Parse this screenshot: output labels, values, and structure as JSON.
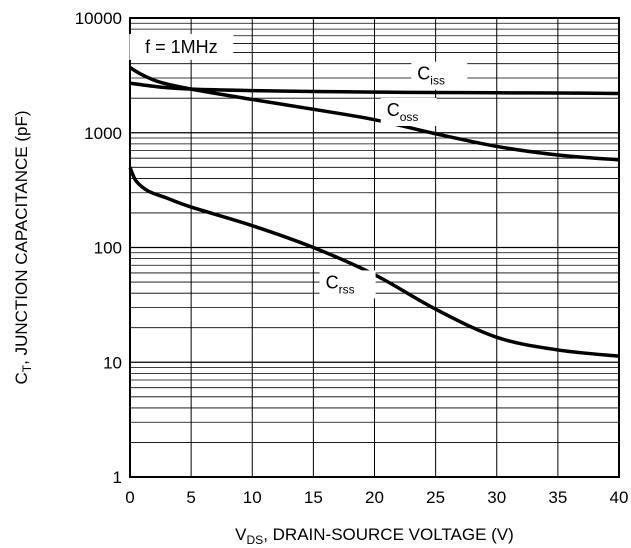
{
  "chart_data": {
    "type": "line",
    "xlabel": {
      "main": "V",
      "sub": "DS",
      "rest": ", DRAIN-SOURCE VOLTAGE (V)"
    },
    "ylabel": {
      "main": "C",
      "sub": "T",
      "rest": ", JUNCTION  CAPACITANCE (pF)"
    },
    "xlim": [
      0,
      40
    ],
    "ylim": [
      1,
      10000
    ],
    "yscale": "log",
    "grid": true,
    "x_ticks": [
      "0",
      "5",
      "10",
      "15",
      "20",
      "25",
      "30",
      "35",
      "40"
    ],
    "y_ticks": [
      "1",
      "10",
      "100",
      "1000",
      "10000"
    ],
    "annotation": "f = 1MHz",
    "series": [
      {
        "name": "Ciss",
        "label_main": "C",
        "label_sub": "iss",
        "label_x": 23.5,
        "label_y": 2900,
        "points": [
          [
            0,
            2700
          ],
          [
            2.5,
            2500
          ],
          [
            5,
            2400
          ],
          [
            10,
            2330
          ],
          [
            15,
            2290
          ],
          [
            20,
            2260
          ],
          [
            25,
            2240
          ],
          [
            30,
            2230
          ],
          [
            35,
            2220
          ],
          [
            40,
            2200
          ]
        ]
      },
      {
        "name": "Coss",
        "label_main": "C",
        "label_sub": "oss",
        "label_x": 21,
        "label_y": 1400,
        "points": [
          [
            0,
            3700
          ],
          [
            1,
            3200
          ],
          [
            2.5,
            2750
          ],
          [
            5,
            2400
          ],
          [
            10,
            1950
          ],
          [
            15,
            1600
          ],
          [
            20,
            1300
          ],
          [
            25,
            980
          ],
          [
            30,
            760
          ],
          [
            35,
            640
          ],
          [
            40,
            580
          ]
        ]
      },
      {
        "name": "Crss",
        "label_main": "C",
        "label_sub": "rss",
        "label_x": 16,
        "label_y": 44,
        "points": [
          [
            0,
            500
          ],
          [
            0.5,
            380
          ],
          [
            1.5,
            310
          ],
          [
            3,
            270
          ],
          [
            5,
            225
          ],
          [
            10,
            155
          ],
          [
            15,
            100
          ],
          [
            20,
            58
          ],
          [
            25,
            29
          ],
          [
            30,
            16.5
          ],
          [
            35,
            12.8
          ],
          [
            40,
            11.3
          ]
        ]
      }
    ]
  }
}
